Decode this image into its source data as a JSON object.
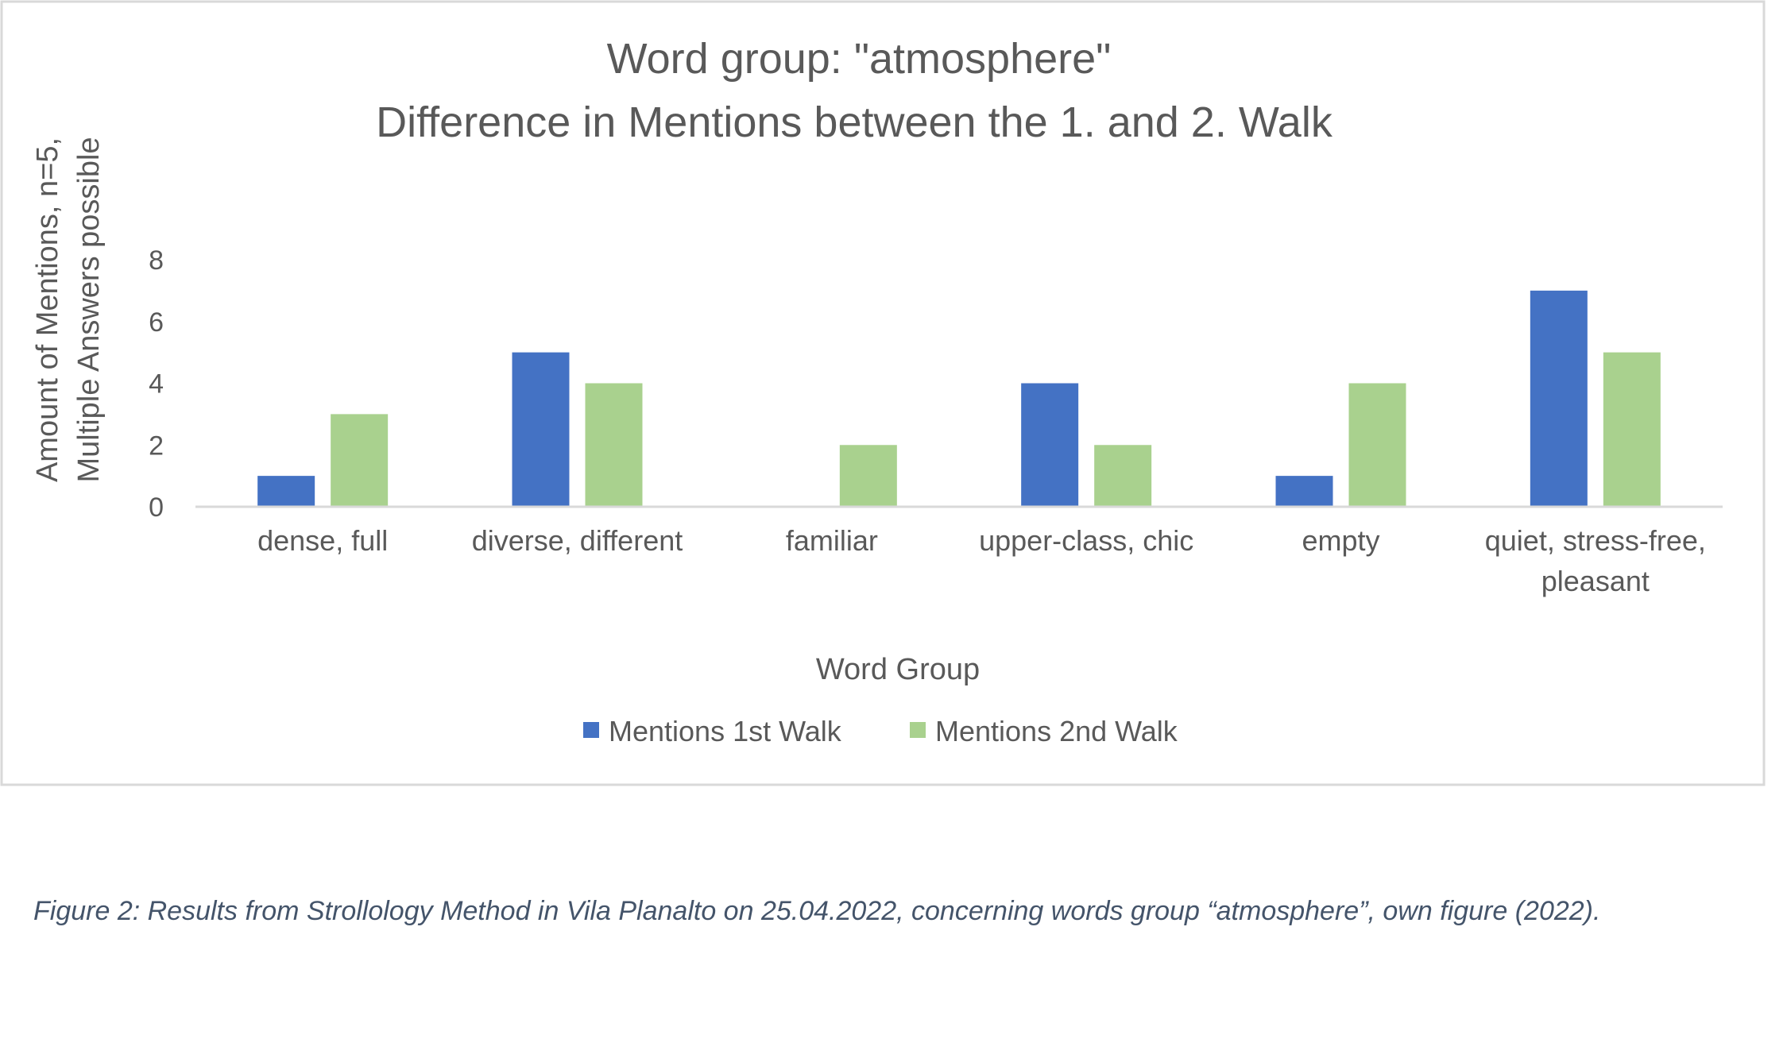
{
  "chart_data": {
    "type": "bar",
    "title_lines": [
      "Word group: \"atmosphere\"",
      "Difference in Mentions between the 1. and 2. Walk"
    ],
    "xlabel": "Word Group",
    "ylabel_lines": [
      "Amount of Mentions, n=5,",
      "Multiple Answers possible"
    ],
    "categories": [
      [
        "dense, full"
      ],
      [
        "diverse, different"
      ],
      [
        "familiar"
      ],
      [
        "upper-class, chic"
      ],
      [
        "empty"
      ],
      [
        "quiet, stress-free,",
        "pleasant"
      ]
    ],
    "series": [
      {
        "name": "Mentions 1st Walk",
        "color": "#4472c4",
        "values": [
          1,
          5,
          0,
          4,
          1,
          7
        ]
      },
      {
        "name": "Mentions 2nd Walk",
        "color": "#a9d18e",
        "values": [
          3,
          4,
          2,
          2,
          4,
          5
        ]
      }
    ],
    "yticks": [
      0,
      2,
      4,
      6,
      8
    ],
    "ylim": [
      0,
      8
    ],
    "grid": false,
    "legend_position": "bottom"
  },
  "caption": "Figure 2: Results from Strollology Method in Vila Planalto on 25.04.2022, concerning words group “atmosphere”, own figure (2022)."
}
